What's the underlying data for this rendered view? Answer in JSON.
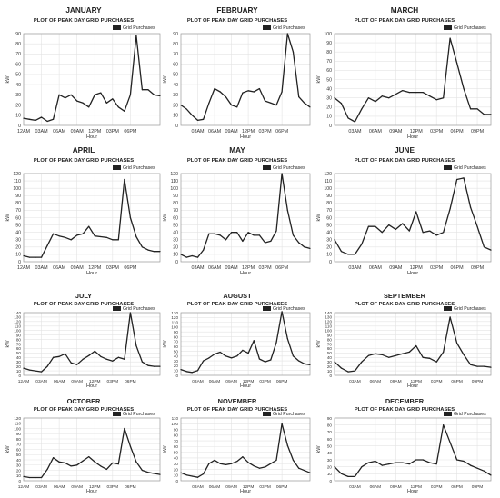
{
  "chart_data": [
    {
      "type": "line",
      "title": "JANUARY",
      "subtitle": "PLOT OF PEAK DAY GRID PURCHASES",
      "xlabel": "Hour",
      "ylabel": "kW",
      "legend": "Grid Purchases",
      "legend_position": "top-right",
      "grid": true,
      "ylim": [
        0,
        90
      ],
      "yticks": [
        0,
        10,
        20,
        30,
        40,
        50,
        60,
        70,
        80,
        90
      ],
      "xticks": [
        "12AM",
        "03AM",
        "06AM",
        "09AM",
        "12PM",
        "03PM",
        "06PM"
      ],
      "series": [
        {
          "values": [
            7,
            6,
            5,
            8,
            4,
            6,
            30,
            27,
            30,
            24,
            22,
            18,
            30,
            32,
            22,
            26,
            18,
            14,
            30,
            88,
            35,
            35,
            30,
            29
          ]
        }
      ]
    },
    {
      "type": "line",
      "title": "FEBRUARY",
      "subtitle": "PLOT OF PEAK DAY GRID PURCHASES",
      "xlabel": "Hour",
      "ylabel": "kW",
      "legend": "Grid Purchases",
      "legend_position": "top-right",
      "grid": true,
      "ylim": [
        0,
        90
      ],
      "yticks": [
        0,
        10,
        20,
        30,
        40,
        50,
        60,
        70,
        80,
        90
      ],
      "xticks": [
        "03AM",
        "06AM",
        "09AM",
        "12PM",
        "03PM",
        "06PM"
      ],
      "series": [
        {
          "values": [
            20,
            16,
            10,
            5,
            6,
            22,
            36,
            33,
            28,
            20,
            18,
            32,
            34,
            33,
            36,
            24,
            22,
            20,
            33,
            90,
            72,
            28,
            22,
            18
          ]
        }
      ]
    },
    {
      "type": "line",
      "title": "MARCH",
      "subtitle": "PLOT OF PEAK DAY GRID PURCHASES",
      "xlabel": "Hour",
      "ylabel": "kW",
      "legend": "Grid Purchases",
      "legend_position": "top-right",
      "grid": true,
      "ylim": [
        0,
        100
      ],
      "yticks": [
        0,
        10,
        20,
        30,
        40,
        50,
        60,
        70,
        80,
        90,
        100
      ],
      "xticks": [
        "03AM",
        "06AM",
        "09AM",
        "12PM",
        "03PM",
        "06PM",
        "09PM"
      ],
      "series": [
        {
          "values": [
            30,
            24,
            8,
            4,
            18,
            30,
            26,
            32,
            30,
            34,
            38,
            36,
            36,
            36,
            32,
            28,
            30,
            95,
            68,
            40,
            18,
            18,
            12,
            12
          ]
        }
      ]
    },
    {
      "type": "line",
      "title": "APRIL",
      "subtitle": "PLOT OF PEAK DAY GRID PURCHASES",
      "xlabel": "Hour",
      "ylabel": "kW",
      "legend": "Grid Purchases",
      "legend_position": "top-right",
      "grid": true,
      "ylim": [
        0,
        120
      ],
      "yticks": [
        0,
        10,
        20,
        30,
        40,
        50,
        60,
        70,
        80,
        90,
        100,
        110,
        120
      ],
      "xticks": [
        "12AM",
        "03AM",
        "06AM",
        "09AM",
        "12PM",
        "03PM",
        "06PM"
      ],
      "series": [
        {
          "values": [
            8,
            6,
            6,
            6,
            22,
            38,
            35,
            33,
            30,
            36,
            38,
            48,
            35,
            34,
            33,
            30,
            30,
            112,
            60,
            34,
            20,
            16,
            14,
            14
          ]
        }
      ]
    },
    {
      "type": "line",
      "title": "MAY",
      "subtitle": "PLOT OF PEAK DAY GRID PURCHASES",
      "xlabel": "Hour",
      "ylabel": "kW",
      "legend": "Grid Purchases",
      "legend_position": "top-right",
      "grid": true,
      "ylim": [
        0,
        120
      ],
      "yticks": [
        0,
        10,
        20,
        30,
        40,
        50,
        60,
        70,
        80,
        90,
        100,
        110,
        120
      ],
      "xticks": [
        "03AM",
        "06AM",
        "09AM",
        "12PM",
        "03PM",
        "06PM"
      ],
      "series": [
        {
          "values": [
            10,
            6,
            8,
            6,
            16,
            38,
            38,
            36,
            30,
            40,
            40,
            28,
            40,
            36,
            36,
            26,
            28,
            42,
            120,
            70,
            36,
            26,
            20,
            18
          ]
        }
      ]
    },
    {
      "type": "line",
      "title": "JUNE",
      "subtitle": "PLOT OF PEAK DAY GRID PURCHASES",
      "xlabel": "Hour",
      "ylabel": "kW",
      "legend": "Grid Purchases",
      "legend_position": "top-right",
      "grid": true,
      "ylim": [
        0,
        120
      ],
      "yticks": [
        0,
        10,
        20,
        30,
        40,
        50,
        60,
        70,
        80,
        90,
        100,
        110,
        120
      ],
      "xticks": [
        "03AM",
        "06AM",
        "09AM",
        "12PM",
        "03PM",
        "06PM",
        "09PM"
      ],
      "series": [
        {
          "values": [
            30,
            14,
            10,
            10,
            24,
            48,
            48,
            40,
            50,
            44,
            52,
            42,
            68,
            40,
            42,
            36,
            40,
            72,
            112,
            114,
            74,
            48,
            20,
            16
          ]
        }
      ]
    },
    {
      "type": "line",
      "title": "JULY",
      "subtitle": "PLOT OF PEAK DAY GRID PURCHASES",
      "xlabel": "Hour",
      "ylabel": "kW",
      "legend": "Grid Purchases",
      "legend_position": "top-right",
      "grid": true,
      "ylim": [
        0,
        140
      ],
      "yticks": [
        0,
        10,
        20,
        30,
        40,
        50,
        60,
        70,
        80,
        90,
        100,
        110,
        120,
        130,
        140
      ],
      "xticks": [
        "12AM",
        "03AM",
        "06AM",
        "09AM",
        "12PM",
        "03PM",
        "06PM"
      ],
      "series": [
        {
          "values": [
            16,
            12,
            10,
            8,
            20,
            40,
            42,
            48,
            28,
            24,
            36,
            44,
            54,
            42,
            36,
            32,
            40,
            36,
            140,
            66,
            30,
            22,
            20,
            20
          ]
        }
      ]
    },
    {
      "type": "line",
      "title": "AUGUST",
      "subtitle": "PLOT OF PEAK DAY GRID PURCHASES",
      "xlabel": "Hour",
      "ylabel": "kW",
      "legend": "Grid Purchases",
      "legend_position": "top-right",
      "grid": true,
      "ylim": [
        0,
        130
      ],
      "yticks": [
        0,
        10,
        20,
        30,
        40,
        50,
        60,
        70,
        80,
        90,
        100,
        110,
        120,
        130
      ],
      "xticks": [
        "03AM",
        "06AM",
        "09AM",
        "12PM",
        "03PM",
        "06PM"
      ],
      "series": [
        {
          "values": [
            12,
            8,
            6,
            10,
            30,
            36,
            44,
            48,
            40,
            36,
            40,
            52,
            46,
            72,
            34,
            28,
            32,
            68,
            132,
            76,
            40,
            30,
            24,
            22
          ]
        }
      ]
    },
    {
      "type": "line",
      "title": "SEPTEMBER",
      "subtitle": "PLOT OF PEAK DAY GRID PURCHASES",
      "xlabel": "Hour",
      "ylabel": "kW",
      "legend": "Grid Purchases",
      "legend_position": "top-right",
      "grid": true,
      "ylim": [
        0,
        140
      ],
      "yticks": [
        0,
        10,
        20,
        30,
        40,
        50,
        60,
        70,
        80,
        90,
        100,
        110,
        120,
        130,
        140
      ],
      "xticks": [
        "03AM",
        "06AM",
        "09AM",
        "12PM",
        "03PM",
        "06PM",
        "09PM"
      ],
      "series": [
        {
          "values": [
            30,
            16,
            8,
            10,
            30,
            44,
            48,
            46,
            40,
            44,
            48,
            52,
            66,
            40,
            38,
            30,
            52,
            130,
            72,
            46,
            24,
            20,
            20,
            18
          ]
        }
      ]
    },
    {
      "type": "line",
      "title": "OCTOBER",
      "subtitle": "PLOT OF PEAK DAY GRID PURCHASES",
      "xlabel": "Hour",
      "ylabel": "kW",
      "legend": "Grid Purchases",
      "legend_position": "top-right",
      "grid": true,
      "ylim": [
        0,
        120
      ],
      "yticks": [
        0,
        10,
        20,
        30,
        40,
        50,
        60,
        70,
        80,
        90,
        100,
        110,
        120
      ],
      "xticks": [
        "12AM",
        "03AM",
        "06AM",
        "09AM",
        "12PM",
        "03PM",
        "06PM"
      ],
      "series": [
        {
          "values": [
            8,
            6,
            6,
            6,
            22,
            44,
            36,
            34,
            28,
            30,
            38,
            46,
            36,
            28,
            22,
            34,
            32,
            100,
            66,
            36,
            20,
            16,
            14,
            12
          ]
        }
      ]
    },
    {
      "type": "line",
      "title": "NOVEMBER",
      "subtitle": "PLOT OF PEAK DAY GRID PURCHASES",
      "xlabel": "Hour",
      "ylabel": "kW",
      "legend": "Grid Purchases",
      "legend_position": "top-right",
      "grid": true,
      "ylim": [
        0,
        110
      ],
      "yticks": [
        0,
        10,
        20,
        30,
        40,
        50,
        60,
        70,
        80,
        90,
        100,
        110
      ],
      "xticks": [
        "03AM",
        "06AM",
        "09AM",
        "12PM",
        "03PM",
        "06PM"
      ],
      "series": [
        {
          "values": [
            14,
            10,
            8,
            6,
            12,
            30,
            36,
            30,
            28,
            30,
            34,
            42,
            32,
            26,
            22,
            24,
            30,
            36,
            100,
            62,
            36,
            22,
            18,
            14
          ]
        }
      ]
    },
    {
      "type": "line",
      "title": "DECEMBER",
      "subtitle": "PLOT OF PEAK DAY GRID PURCHASES",
      "xlabel": "Hour",
      "ylabel": "kW",
      "legend": "Grid Purchases",
      "legend_position": "top-right",
      "grid": true,
      "ylim": [
        0,
        90
      ],
      "yticks": [
        0,
        10,
        20,
        30,
        40,
        50,
        60,
        70,
        80,
        90
      ],
      "xticks": [
        "03AM",
        "06AM",
        "09AM",
        "12PM",
        "03PM",
        "06PM",
        "09PM"
      ],
      "series": [
        {
          "values": [
            20,
            10,
            6,
            6,
            20,
            26,
            28,
            22,
            24,
            26,
            26,
            24,
            30,
            30,
            26,
            24,
            80,
            55,
            30,
            28,
            22,
            18,
            14,
            8
          ]
        }
      ]
    }
  ]
}
